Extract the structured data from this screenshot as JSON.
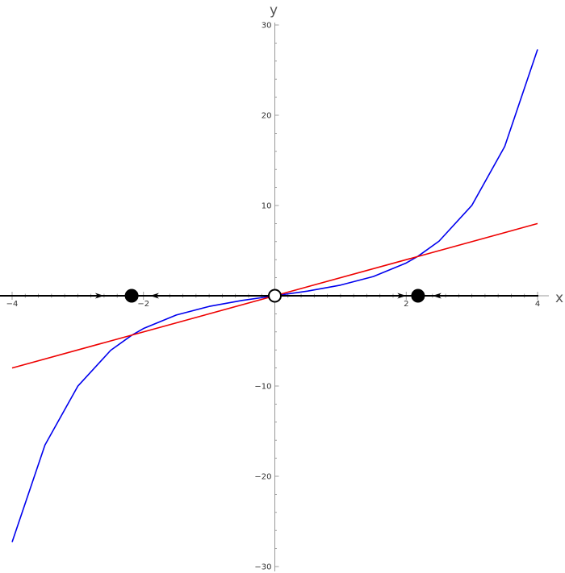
{
  "chart_data": {
    "type": "line",
    "title": "",
    "xlabel": "x",
    "ylabel": "y",
    "xlim": [
      -4,
      4
    ],
    "ylim": [
      -30,
      30
    ],
    "x_ticks": [
      {
        "value": -4,
        "label": "−4"
      },
      {
        "value": -2,
        "label": "−2"
      },
      {
        "value": 2,
        "label": "2"
      },
      {
        "value": 4,
        "label": "4"
      }
    ],
    "y_ticks": [
      {
        "value": 30,
        "label": "30"
      },
      {
        "value": 20,
        "label": "20"
      },
      {
        "value": 10,
        "label": "10"
      },
      {
        "value": -10,
        "label": "−10"
      },
      {
        "value": -20,
        "label": "−20"
      },
      {
        "value": -30,
        "label": "−30"
      }
    ],
    "series": [
      {
        "color": "#0000ee",
        "x": [
          -4,
          -3.5,
          -3,
          -2.5,
          -2.18,
          -2,
          -1.5,
          -1,
          -0.5,
          0,
          0.5,
          1,
          1.5,
          2,
          2.18,
          2.5,
          3,
          3.5,
          4
        ],
        "y": [
          -27.29,
          -16.54,
          -10.02,
          -6.05,
          -4.38,
          -3.63,
          -2.13,
          -1.18,
          -0.52,
          0,
          0.52,
          1.18,
          2.13,
          3.63,
          4.38,
          6.05,
          10.02,
          16.54,
          27.29
        ]
      },
      {
        "color": "#ee0000",
        "x": [
          -4,
          4
        ],
        "y": [
          -8,
          8
        ]
      }
    ],
    "equilibria": [
      {
        "x": -2.18,
        "y": 0,
        "stability": "stable"
      },
      {
        "x": 0,
        "y": 0,
        "stability": "unstable"
      },
      {
        "x": 2.18,
        "y": 0,
        "stability": "stable"
      }
    ],
    "flow_arrows": [
      {
        "x": -2.6,
        "direction": "right"
      },
      {
        "x": -1.9,
        "direction": "left"
      },
      {
        "x": 2.0,
        "direction": "right"
      },
      {
        "x": 2.4,
        "direction": "left"
      }
    ],
    "colors": {
      "axis": "#000000",
      "phase_line": "#000000",
      "curve": "#0000ee",
      "line": "#ee0000"
    }
  }
}
